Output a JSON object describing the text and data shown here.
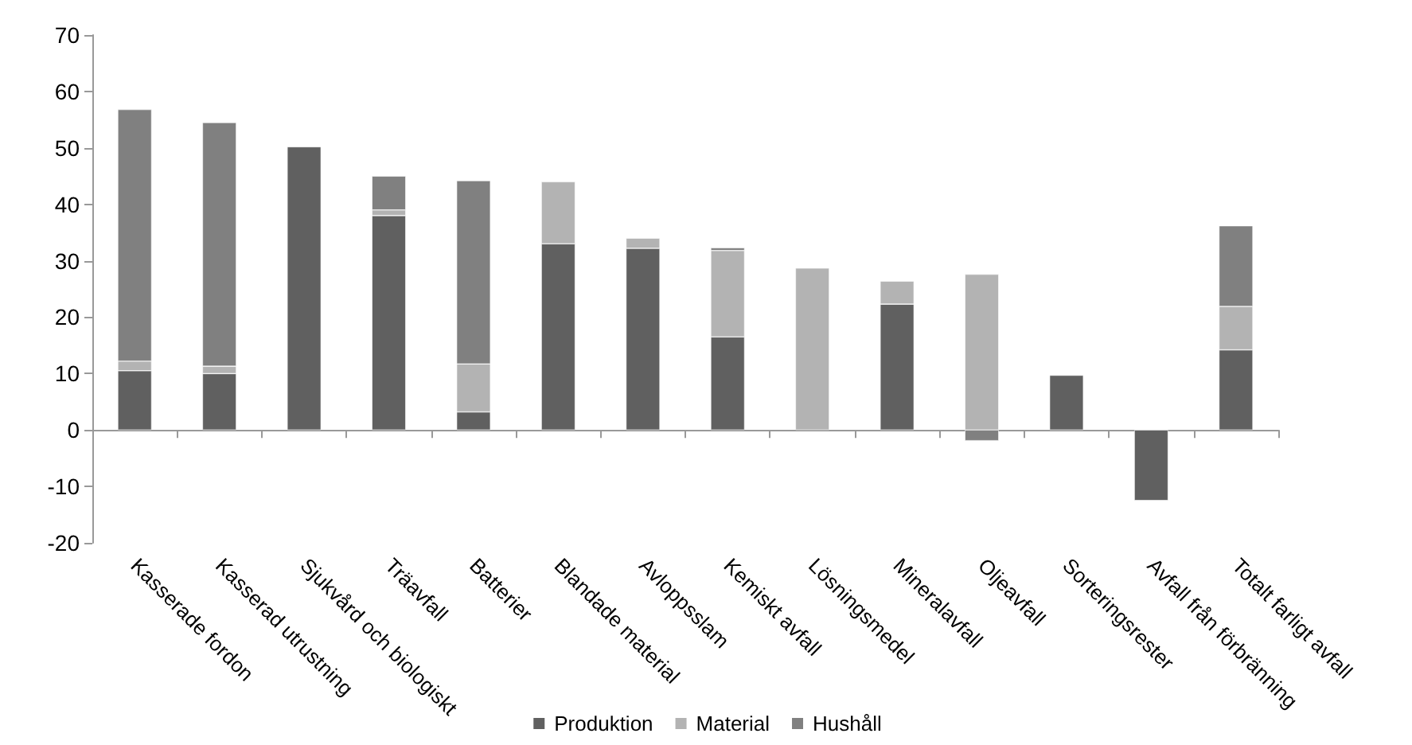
{
  "chart_data": {
    "type": "bar",
    "stacked": true,
    "categories": [
      "Kasserade fordon",
      "Kasserad utrustning",
      "Sjukvård och biologiskt",
      "Träavfall",
      "Batterier",
      "Blandade material",
      "Avloppsslam",
      "Kemiskt avfall",
      "Lösningsmedel",
      "Mineralavfall",
      "Oljeavfall",
      "Sorteringsrester",
      "Avfall från förbränning",
      "Totalt farligt avfall"
    ],
    "series": [
      {
        "name": "Produktion",
        "color": "#606060",
        "values": [
          10.5,
          10,
          50.2,
          38,
          3.2,
          33,
          32.2,
          16.5,
          null,
          22.3,
          null,
          9.7,
          -12.5,
          14.2
        ]
      },
      {
        "name": "Material",
        "color": "#b3b3b3",
        "values": [
          1.7,
          1.3,
          null,
          1,
          8.5,
          11,
          1.8,
          15.3,
          28.7,
          4.1,
          27.6,
          null,
          null,
          7.7
        ]
      },
      {
        "name": "Hushåll",
        "color": "#808080",
        "values": [
          44.6,
          43.2,
          null,
          6,
          32.5,
          null,
          null,
          0.5,
          null,
          null,
          -1.9,
          null,
          null,
          14.3
        ]
      }
    ],
    "ylim": [
      -20,
      70
    ],
    "yticks": [
      -20,
      -10,
      0,
      10,
      20,
      30,
      40,
      50,
      60,
      70
    ],
    "legend": "bottom"
  }
}
